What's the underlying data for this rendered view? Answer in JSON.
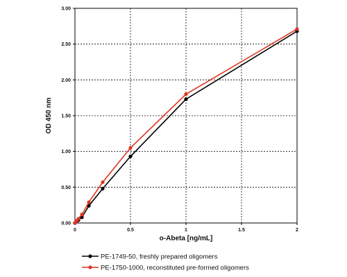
{
  "chart_data": {
    "type": "line",
    "title": "",
    "xlabel": "o-Abeta [ng/mL]",
    "ylabel": "OD 450 nm",
    "xlim": [
      0,
      2
    ],
    "ylim": [
      0,
      3
    ],
    "x_ticks": [
      "0",
      "0.5",
      "1",
      "1.5",
      "2"
    ],
    "y_ticks": [
      "0.00",
      "0.50",
      "1.00",
      "1.50",
      "2.00",
      "2.50",
      "3.00"
    ],
    "grid": true,
    "legend_position": "bottom",
    "series": [
      {
        "name": "PE-1749-50, freshly prepared oligomers",
        "color": "#000000",
        "x": [
          0,
          0.016,
          0.031,
          0.063,
          0.125,
          0.25,
          0.5,
          1,
          2
        ],
        "y": [
          0.0,
          0.02,
          0.04,
          0.08,
          0.24,
          0.48,
          0.93,
          1.73,
          2.68
        ]
      },
      {
        "name": "PE-1750-1000, reconstituted pre-formed oligomers",
        "color": "#e0341f",
        "x": [
          0,
          0.016,
          0.031,
          0.063,
          0.125,
          0.25,
          0.5,
          1,
          2
        ],
        "y": [
          0.0,
          0.03,
          0.06,
          0.12,
          0.29,
          0.57,
          1.05,
          1.8,
          2.71
        ]
      }
    ]
  }
}
